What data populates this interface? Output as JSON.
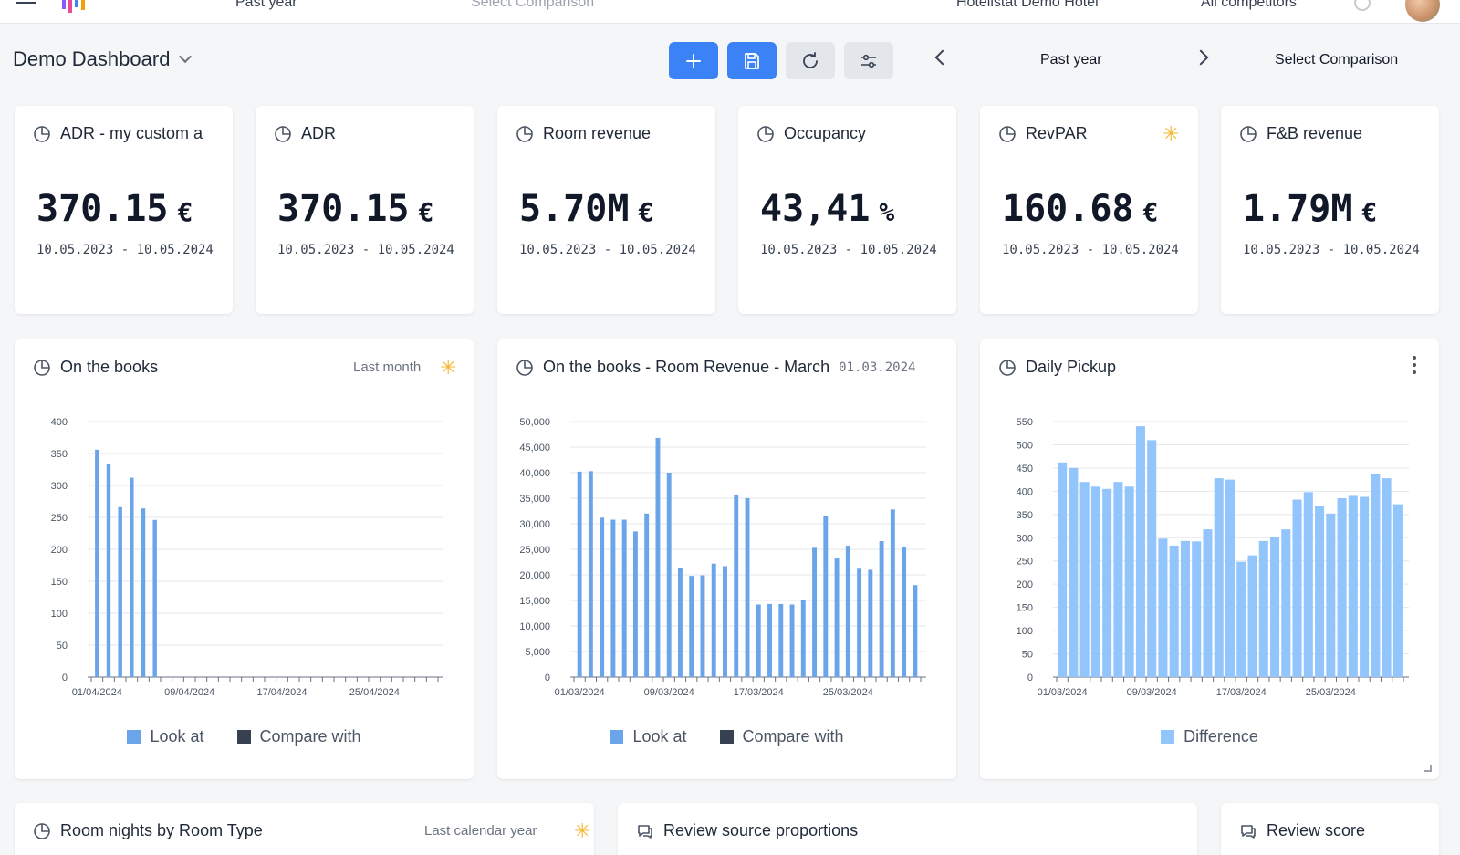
{
  "topbar": {
    "partial_left": "Past year",
    "partial_compare": "Select Comparison",
    "hotel": "Hotelistat Demo Hotel",
    "competitors": "All competitors"
  },
  "header": {
    "title": "Demo Dashboard",
    "period": "Past year",
    "compare_label": "Select Comparison"
  },
  "colors": {
    "accent": "#3b82f6",
    "look_at": "#6aa4ea",
    "compare_with": "#374151",
    "difference": "#93c5fd",
    "star": "#f5b52c"
  },
  "kpis": [
    {
      "title": "ADR  - my custom a",
      "value": "370.15",
      "unit": "€",
      "date": "10.05.2023 - 10.05.2024",
      "starred": false
    },
    {
      "title": "ADR",
      "value": "370.15",
      "unit": "€",
      "date": "10.05.2023 - 10.05.2024",
      "starred": false
    },
    {
      "title": "Room revenue",
      "value": "5.70M",
      "unit": "€",
      "date": "10.05.2023 - 10.05.2024",
      "starred": false
    },
    {
      "title": "Occupancy",
      "value": "43,41",
      "unit": "%",
      "date": "10.05.2023 - 10.05.2024",
      "starred": false
    },
    {
      "title": "RevPAR",
      "value": "160.68",
      "unit": "€",
      "date": "10.05.2023 - 10.05.2024",
      "starred": true
    },
    {
      "title": "F&B revenue",
      "value": "1.79M",
      "unit": "€",
      "date": "10.05.2023 - 10.05.2024",
      "starred": false
    }
  ],
  "widgets": {
    "otb": {
      "title": "On the books",
      "filter": "Last month",
      "legend": [
        "Look at",
        "Compare with"
      ]
    },
    "otb_march": {
      "title": "On the books  - Room Revenue - March",
      "date": "01.03.2024",
      "legend": [
        "Look at",
        "Compare with"
      ]
    },
    "pickup": {
      "title": "Daily Pickup",
      "legend": [
        "Difference"
      ]
    },
    "room_nights": {
      "title": "Room nights by Room Type",
      "filter": "Last calendar year"
    },
    "review_sources": {
      "title": "Review source proportions"
    },
    "review_score": {
      "title": "Review score"
    }
  },
  "chart_data": [
    {
      "type": "bar",
      "title": "On the books",
      "ylim": [
        0,
        400
      ],
      "yticks": [
        0,
        50,
        100,
        150,
        200,
        250,
        300,
        350,
        400
      ],
      "xtick_labels": [
        "01/04/2024",
        "09/04/2024",
        "17/04/2024",
        "25/04/2024"
      ],
      "n_slots": 30,
      "series": [
        {
          "name": "Look at",
          "values": [
            356,
            333,
            266,
            312,
            264,
            246
          ]
        }
      ],
      "legend": "bottom"
    },
    {
      "type": "bar",
      "title": "On the books  - Room Revenue - March",
      "ylim": [
        0,
        50000
      ],
      "yticks": [
        0,
        5000,
        10000,
        15000,
        20000,
        25000,
        30000,
        35000,
        40000,
        45000,
        50000
      ],
      "ytick_labels": [
        "0",
        "5,000",
        "10,000",
        "15,000",
        "20,000",
        "25,000",
        "30,000",
        "35,000",
        "40,000",
        "45,000",
        "50,000"
      ],
      "xtick_labels": [
        "01/03/2024",
        "09/03/2024",
        "17/03/2024",
        "25/03/2024"
      ],
      "n_slots": 31,
      "series": [
        {
          "name": "Look at",
          "values": [
            40200,
            40300,
            31200,
            30800,
            30800,
            28500,
            32000,
            46800,
            40000,
            21400,
            19800,
            19900,
            22200,
            21700,
            35600,
            35000,
            14200,
            14300,
            14300,
            14200,
            15000,
            25300,
            31500,
            23200,
            25700,
            21200,
            21000,
            26600,
            32800,
            25400,
            18000
          ]
        }
      ],
      "legend": "bottom"
    },
    {
      "type": "bar",
      "title": "Daily Pickup",
      "ylim": [
        0,
        550
      ],
      "yticks": [
        0,
        50,
        100,
        150,
        200,
        250,
        300,
        350,
        400,
        450,
        500,
        550
      ],
      "xtick_labels": [
        "01/03/2024",
        "09/03/2024",
        "17/03/2024",
        "25/03/2024"
      ],
      "n_slots": 31,
      "series": [
        {
          "name": "Difference",
          "values": [
            462,
            450,
            420,
            410,
            405,
            420,
            410,
            540,
            510,
            298,
            283,
            293,
            292,
            318,
            428,
            425,
            248,
            262,
            293,
            302,
            318,
            382,
            398,
            368,
            352,
            385,
            390,
            388,
            437,
            428,
            372
          ]
        }
      ],
      "legend": "bottom"
    }
  ]
}
